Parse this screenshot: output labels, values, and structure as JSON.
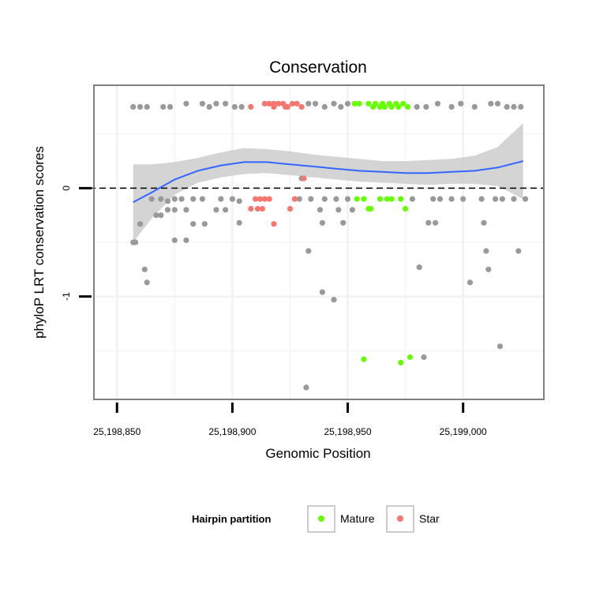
{
  "chart_data": {
    "type": "scatter",
    "title": "Conservation",
    "xlabel": "Genomic Position",
    "ylabel": "phyloP LRT conservation scores",
    "xlim": [
      25198840,
      25199035
    ],
    "ylim": [
      -1.95,
      0.95
    ],
    "x_ticks": [
      25198850,
      25198900,
      25198950,
      25199000
    ],
    "x_tick_labels": [
      "25,198,850",
      "25,198,900",
      "25,198,950",
      "25,199,000"
    ],
    "y_ticks": [
      0,
      -1
    ],
    "y_tick_labels": [
      "0",
      "-1"
    ],
    "reference_line": {
      "y": 0,
      "style": "dashed"
    },
    "grid": true,
    "colors": {
      "other": "#999999",
      "Mature": "#66ff00",
      "Star": "#f8766d",
      "smooth_line": "#3366ff",
      "smooth_band": "#cccccc",
      "grid": "#f2f2f2",
      "panel_border": "#7f7f7f"
    },
    "legend": {
      "title": "Hairpin partition",
      "position": "bottom",
      "entries": [
        {
          "label": "Mature",
          "color": "#66ff00"
        },
        {
          "label": "Star",
          "color": "#f8766d"
        }
      ]
    },
    "series": [
      {
        "name": "other",
        "points": [
          [
            25198857,
            0.75
          ],
          [
            25198860,
            0.75
          ],
          [
            25198863,
            0.75
          ],
          [
            25198870,
            0.75
          ],
          [
            25198873,
            0.75
          ],
          [
            25198880,
            0.78
          ],
          [
            25198887,
            0.78
          ],
          [
            25198890,
            0.75
          ],
          [
            25198893,
            0.78
          ],
          [
            25198897,
            0.78
          ],
          [
            25198901,
            0.75
          ],
          [
            25198904,
            0.75
          ],
          [
            25198933,
            0.78
          ],
          [
            25198936,
            0.78
          ],
          [
            25198940,
            0.75
          ],
          [
            25198944,
            0.78
          ],
          [
            25198947,
            0.75
          ],
          [
            25198950,
            0.78
          ],
          [
            25198980,
            0.75
          ],
          [
            25198984,
            0.75
          ],
          [
            25198989,
            0.78
          ],
          [
            25198995,
            0.75
          ],
          [
            25198999,
            0.78
          ],
          [
            25199005,
            0.75
          ],
          [
            25199012,
            0.78
          ],
          [
            25199015,
            0.78
          ],
          [
            25199019,
            0.75
          ],
          [
            25199022,
            0.75
          ],
          [
            25199025,
            0.75
          ],
          [
            25198865,
            -0.1
          ],
          [
            25198869,
            -0.1
          ],
          [
            25198872,
            -0.12
          ],
          [
            25198875,
            -0.1
          ],
          [
            25198878,
            -0.1
          ],
          [
            25198883,
            -0.1
          ],
          [
            25198887,
            -0.1
          ],
          [
            25198895,
            -0.1
          ],
          [
            25198900,
            -0.1
          ],
          [
            25198903,
            -0.12
          ],
          [
            25198914,
            -0.1
          ],
          [
            25198929,
            -0.1
          ],
          [
            25198934,
            -0.1
          ],
          [
            25198940,
            -0.1
          ],
          [
            25198945,
            -0.1
          ],
          [
            25198950,
            -0.1
          ],
          [
            25198978,
            -0.1
          ],
          [
            25198987,
            -0.1
          ],
          [
            25198990,
            -0.1
          ],
          [
            25198995,
            -0.1
          ],
          [
            25199000,
            -0.1
          ],
          [
            25199008,
            -0.1
          ],
          [
            25199014,
            -0.1
          ],
          [
            25199017,
            -0.1
          ],
          [
            25199022,
            -0.1
          ],
          [
            25199027,
            -0.1
          ],
          [
            25198872,
            -0.2
          ],
          [
            25198875,
            -0.2
          ],
          [
            25198880,
            -0.2
          ],
          [
            25198893,
            -0.2
          ],
          [
            25198897,
            -0.2
          ],
          [
            25198938,
            -0.2
          ],
          [
            25198946,
            -0.2
          ],
          [
            25198952,
            -0.2
          ],
          [
            25198867,
            -0.25
          ],
          [
            25198869,
            -0.25
          ],
          [
            25198860,
            -0.33
          ],
          [
            25198883,
            -0.33
          ],
          [
            25198888,
            -0.33
          ],
          [
            25198903,
            -0.32
          ],
          [
            25198939,
            -0.32
          ],
          [
            25198948,
            -0.32
          ],
          [
            25198985,
            -0.32
          ],
          [
            25198988,
            -0.32
          ],
          [
            25199009,
            -0.32
          ],
          [
            25198930,
            0.09
          ],
          [
            25198875,
            -0.48
          ],
          [
            25198880,
            -0.48
          ],
          [
            25198857,
            -0.5
          ],
          [
            25198858,
            -0.5
          ],
          [
            25198933,
            -0.58
          ],
          [
            25199010,
            -0.58
          ],
          [
            25199024,
            -0.58
          ],
          [
            25198862,
            -0.75
          ],
          [
            25198981,
            -0.73
          ],
          [
            25199011,
            -0.75
          ],
          [
            25198863,
            -0.87
          ],
          [
            25199003,
            -0.87
          ],
          [
            25198939,
            -0.96
          ],
          [
            25198944,
            -1.03
          ],
          [
            25199016,
            -1.46
          ],
          [
            25198983,
            -1.56
          ],
          [
            25198932,
            -1.84
          ]
        ]
      },
      {
        "name": "Mature",
        "points": [
          [
            25198953,
            0.78
          ],
          [
            25198955,
            0.78
          ],
          [
            25198959,
            0.78
          ],
          [
            25198962,
            0.78
          ],
          [
            25198965,
            0.78
          ],
          [
            25198968,
            0.78
          ],
          [
            25198971,
            0.78
          ],
          [
            25198974,
            0.78
          ],
          [
            25198961,
            0.75
          ],
          [
            25198964,
            0.75
          ],
          [
            25198966,
            0.75
          ],
          [
            25198969,
            0.75
          ],
          [
            25198972,
            0.75
          ],
          [
            25198976,
            0.75
          ],
          [
            25198954,
            -0.1
          ],
          [
            25198957,
            -0.1
          ],
          [
            25198964,
            -0.1
          ],
          [
            25198967,
            -0.1
          ],
          [
            25198969,
            -0.1
          ],
          [
            25198973,
            -0.1
          ],
          [
            25198959,
            -0.19
          ],
          [
            25198960,
            -0.19
          ],
          [
            25198975,
            -0.19
          ],
          [
            25198957,
            -1.58
          ],
          [
            25198973,
            -1.61
          ],
          [
            25198977,
            -1.56
          ]
        ]
      },
      {
        "name": "Star",
        "points": [
          [
            25198908,
            0.75
          ],
          [
            25198914,
            0.78
          ],
          [
            25198916,
            0.78
          ],
          [
            25198918,
            0.75
          ],
          [
            25198920,
            0.78
          ],
          [
            25198922,
            0.78
          ],
          [
            25198924,
            0.75
          ],
          [
            25198926,
            0.78
          ],
          [
            25198928,
            0.78
          ],
          [
            25198930,
            0.75
          ],
          [
            25198918,
            0.78
          ],
          [
            25198923,
            0.75
          ],
          [
            25198910,
            -0.1
          ],
          [
            25198912,
            -0.1
          ],
          [
            25198914,
            -0.1
          ],
          [
            25198916,
            -0.1
          ],
          [
            25198927,
            -0.1
          ],
          [
            25198908,
            -0.19
          ],
          [
            25198911,
            -0.19
          ],
          [
            25198913,
            -0.19
          ],
          [
            25198925,
            -0.19
          ],
          [
            25198918,
            -0.33
          ],
          [
            25198931,
            0.09
          ]
        ]
      }
    ],
    "smooth_fit": {
      "method": "loess",
      "line": [
        [
          25198857,
          -0.13
        ],
        [
          25198865,
          -0.04
        ],
        [
          25198875,
          0.08
        ],
        [
          25198885,
          0.16
        ],
        [
          25198895,
          0.21
        ],
        [
          25198905,
          0.24
        ],
        [
          25198915,
          0.24
        ],
        [
          25198925,
          0.22
        ],
        [
          25198935,
          0.2
        ],
        [
          25198945,
          0.18
        ],
        [
          25198955,
          0.16
        ],
        [
          25198965,
          0.15
        ],
        [
          25198975,
          0.14
        ],
        [
          25198985,
          0.14
        ],
        [
          25198995,
          0.15
        ],
        [
          25199005,
          0.16
        ],
        [
          25199015,
          0.19
        ],
        [
          25199026,
          0.25
        ]
      ],
      "lower": [
        [
          25198857,
          -0.5
        ],
        [
          25198865,
          -0.28
        ],
        [
          25198875,
          -0.06
        ],
        [
          25198885,
          0.05
        ],
        [
          25198895,
          0.1
        ],
        [
          25198905,
          0.13
        ],
        [
          25198915,
          0.14
        ],
        [
          25198925,
          0.12
        ],
        [
          25198935,
          0.1
        ],
        [
          25198945,
          0.08
        ],
        [
          25198955,
          0.06
        ],
        [
          25198965,
          0.05
        ],
        [
          25198975,
          0.04
        ],
        [
          25198985,
          0.03
        ],
        [
          25198995,
          0.04
        ],
        [
          25199005,
          0.04
        ],
        [
          25199015,
          0.02
        ],
        [
          25199026,
          -0.1
        ]
      ],
      "upper": [
        [
          25198857,
          0.22
        ],
        [
          25198865,
          0.22
        ],
        [
          25198875,
          0.24
        ],
        [
          25198885,
          0.28
        ],
        [
          25198895,
          0.33
        ],
        [
          25198905,
          0.37
        ],
        [
          25198915,
          0.36
        ],
        [
          25198925,
          0.34
        ],
        [
          25198935,
          0.31
        ],
        [
          25198945,
          0.29
        ],
        [
          25198955,
          0.27
        ],
        [
          25198965,
          0.25
        ],
        [
          25198975,
          0.25
        ],
        [
          25198985,
          0.26
        ],
        [
          25198995,
          0.27
        ],
        [
          25199005,
          0.3
        ],
        [
          25199015,
          0.38
        ],
        [
          25199026,
          0.6
        ]
      ]
    }
  }
}
